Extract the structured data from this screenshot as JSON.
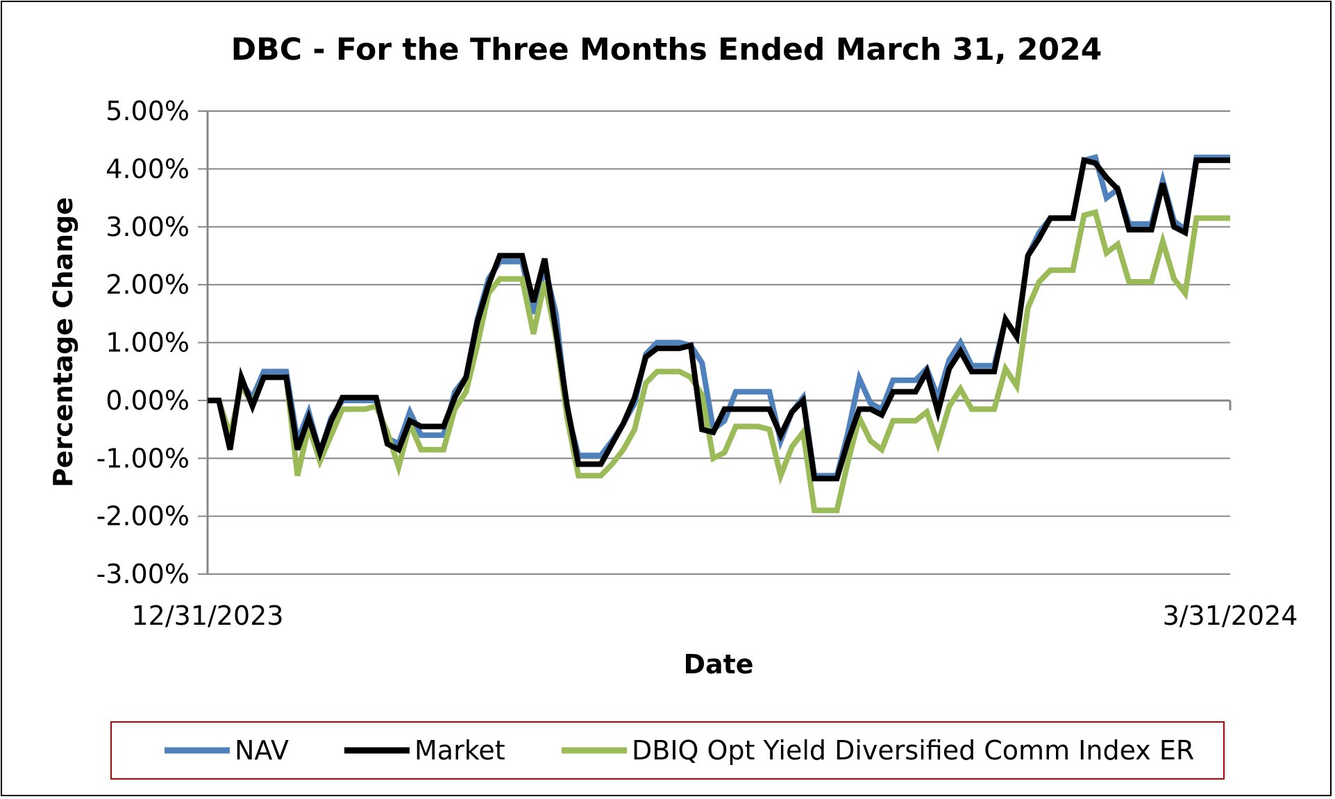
{
  "chart_data": {
    "type": "line",
    "title": "DBC - For the Three Months Ended March 31, 2024",
    "xlabel": "Date",
    "ylabel": "Percentage Change",
    "x_tick_labels": [
      "12/31/2023",
      "3/31/2024"
    ],
    "ylim": [
      -3,
      5
    ],
    "y_ticks": [
      -3,
      -2,
      -1,
      0,
      1,
      2,
      3,
      4,
      5
    ],
    "y_tick_labels": [
      "-3.00%",
      "-2.00%",
      "-1.00%",
      "0.00%",
      "1.00%",
      "2.00%",
      "3.00%",
      "4.00%",
      "5.00%"
    ],
    "grid": true,
    "legend_position": "bottom",
    "series": [
      {
        "name": "NAV",
        "color": "#4f81bd",
        "values": [
          0,
          0,
          -0.7,
          0.3,
          0.05,
          0.5,
          0.5,
          0.5,
          -0.7,
          -0.2,
          -0.9,
          -0.3,
          0,
          0,
          0,
          0,
          -0.65,
          -0.75,
          -0.2,
          -0.6,
          -0.6,
          -0.6,
          0.15,
          0.4,
          1.4,
          2.1,
          2.4,
          2.4,
          2.4,
          1.5,
          2.3,
          1.5,
          -0.2,
          -0.95,
          -0.95,
          -0.95,
          -0.7,
          -0.4,
          -0.05,
          0.8,
          1.0,
          1.0,
          1.0,
          0.95,
          0.65,
          -0.5,
          -0.35,
          0.15,
          0.15,
          0.15,
          0.15,
          -0.7,
          -0.2,
          0.05,
          -1.3,
          -1.3,
          -1.3,
          -0.55,
          0.38,
          -0.05,
          -0.15,
          0.35,
          0.35,
          0.35,
          0.55,
          0.05,
          0.7,
          1.0,
          0.6,
          0.6,
          0.6,
          1.4,
          1.1,
          2.5,
          2.9,
          3.15,
          3.15,
          3.15,
          4.15,
          4.2,
          3.5,
          3.65,
          3.05,
          3.05,
          3.05,
          3.8,
          3.1,
          2.95,
          4.2,
          4.2,
          4.2,
          4.2
        ]
      },
      {
        "name": "Market",
        "color": "#000000",
        "values": [
          0,
          0,
          -0.85,
          0.4,
          -0.1,
          0.4,
          0.4,
          0.4,
          -0.85,
          -0.3,
          -0.9,
          -0.35,
          0.05,
          0.05,
          0.05,
          0.05,
          -0.75,
          -0.85,
          -0.35,
          -0.45,
          -0.45,
          -0.45,
          0.05,
          0.4,
          1.35,
          2.0,
          2.5,
          2.5,
          2.5,
          1.7,
          2.45,
          1.2,
          -0.1,
          -1.1,
          -1.1,
          -1.1,
          -0.75,
          -0.4,
          0.05,
          0.75,
          0.9,
          0.9,
          0.9,
          0.95,
          -0.5,
          -0.55,
          -0.15,
          -0.15,
          -0.15,
          -0.15,
          -0.15,
          -0.6,
          -0.2,
          0,
          -1.35,
          -1.35,
          -1.35,
          -0.7,
          -0.15,
          -0.15,
          -0.25,
          0.15,
          0.15,
          0.15,
          0.5,
          -0.2,
          0.55,
          0.85,
          0.5,
          0.5,
          0.5,
          1.4,
          1.1,
          2.5,
          2.8,
          3.15,
          3.15,
          3.15,
          4.15,
          4.1,
          3.85,
          3.65,
          2.95,
          2.95,
          2.95,
          3.75,
          3.0,
          2.9,
          4.15,
          4.15,
          4.15,
          4.15
        ]
      },
      {
        "name": "DBIQ Opt Yield Diversified Comm Index ER",
        "color": "#9bbb59",
        "values": [
          0,
          0,
          -0.6,
          0.25,
          -0.05,
          0.4,
          0.4,
          0.4,
          -1.3,
          -0.45,
          -1.05,
          -0.6,
          -0.15,
          -0.15,
          -0.15,
          -0.1,
          -0.55,
          -1.15,
          -0.4,
          -0.85,
          -0.85,
          -0.85,
          -0.15,
          0.15,
          0.95,
          1.85,
          2.1,
          2.1,
          2.1,
          1.15,
          2.05,
          1.1,
          -0.3,
          -1.3,
          -1.3,
          -1.3,
          -1.1,
          -0.85,
          -0.5,
          0.3,
          0.5,
          0.5,
          0.5,
          0.4,
          0.1,
          -1.0,
          -0.9,
          -0.45,
          -0.45,
          -0.45,
          -0.5,
          -1.3,
          -0.8,
          -0.55,
          -1.9,
          -1.9,
          -1.9,
          -1.05,
          -0.3,
          -0.7,
          -0.85,
          -0.35,
          -0.35,
          -0.35,
          -0.2,
          -0.75,
          -0.1,
          0.2,
          -0.15,
          -0.15,
          -0.15,
          0.55,
          0.25,
          1.6,
          2.05,
          2.25,
          2.25,
          2.25,
          3.2,
          3.25,
          2.55,
          2.7,
          2.05,
          2.05,
          2.05,
          2.75,
          2.1,
          1.85,
          3.15,
          3.15,
          3.15,
          3.15
        ]
      }
    ]
  }
}
